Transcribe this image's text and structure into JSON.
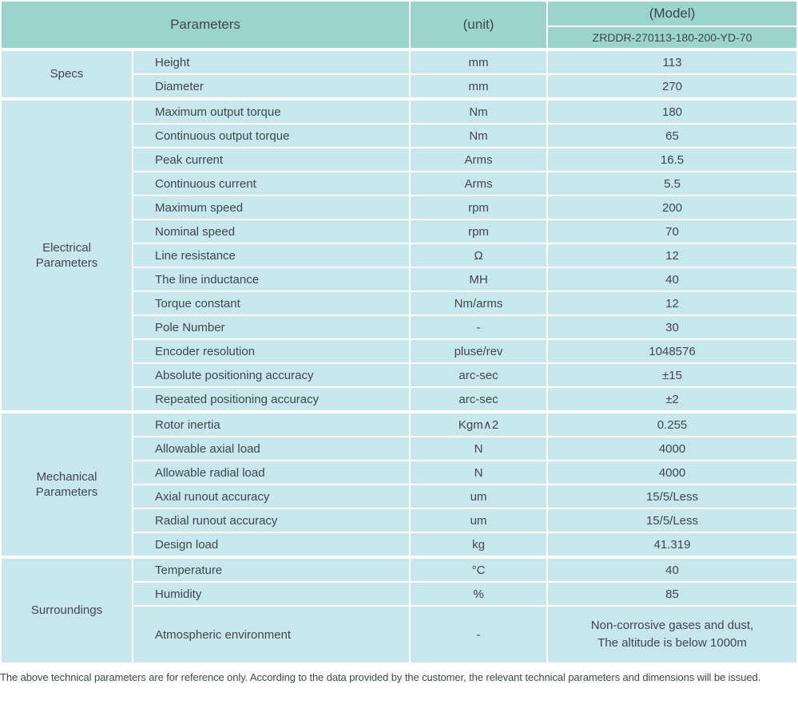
{
  "colors": {
    "header_bg": "#9bd3cd",
    "cell_bg": "#c8e7ec",
    "text": "#3e474a",
    "grid": "#ffffff",
    "page_bg": "#ffffff"
  },
  "header": {
    "parameters_label": "Parameters",
    "unit_label": "(unit)",
    "model_label": "(Model)",
    "model_value": "ZRDDR-270113-180-200-YD-70"
  },
  "sections": [
    {
      "group": "Specs",
      "rows": [
        {
          "name": "Height",
          "unit": "mm",
          "value": "113"
        },
        {
          "name": "Diameter",
          "unit": "mm",
          "value": "270"
        }
      ]
    },
    {
      "group": "Electrical Parameters",
      "rows": [
        {
          "name": "Maximum output torque",
          "unit": "Nm",
          "value": "180"
        },
        {
          "name": "Continuous output torque",
          "unit": "Nm",
          "value": "65"
        },
        {
          "name": "Peak current",
          "unit": "Arms",
          "value": "16.5"
        },
        {
          "name": "Continuous current",
          "unit": "Arms",
          "value": "5.5"
        },
        {
          "name": "Maximum speed",
          "unit": "rpm",
          "value": "200"
        },
        {
          "name": "Nominal speed",
          "unit": "rpm",
          "value": "70"
        },
        {
          "name": "Line resistance",
          "unit": "Ω",
          "value": "12"
        },
        {
          "name": "The line inductance",
          "unit": "MH",
          "value": "40"
        },
        {
          "name": "Torque constant",
          "unit": "Nm/arms",
          "value": "12"
        },
        {
          "name": "Pole Number",
          "unit": "-",
          "value": "30"
        },
        {
          "name": "Encoder resolution",
          "unit": "pluse/rev",
          "value": "1048576"
        },
        {
          "name": "Absolute positioning accuracy",
          "unit": "arc-sec",
          "value": "±15"
        },
        {
          "name": "Repeated positioning accuracy",
          "unit": "arc-sec",
          "value": "±2"
        }
      ]
    },
    {
      "group": "Mechanical Parameters",
      "rows": [
        {
          "name": "Rotor inertia",
          "unit": "Kgm∧2",
          "value": "0.255"
        },
        {
          "name": "Allowable axial load",
          "unit": "N",
          "value": "4000"
        },
        {
          "name": "Allowable radial load",
          "unit": "N",
          "value": "4000"
        },
        {
          "name": "Axial runout accuracy",
          "unit": "um",
          "value": "15/5/Less"
        },
        {
          "name": "Radial runout accuracy",
          "unit": "um",
          "value": "15/5/Less"
        },
        {
          "name": "Design load",
          "unit": "kg",
          "value": "41.319"
        }
      ]
    },
    {
      "group": "Surroundings",
      "rows": [
        {
          "name": "Temperature",
          "unit": "°C",
          "value": "40"
        },
        {
          "name": "Humidity",
          "unit": "%",
          "value": "85"
        },
        {
          "name": "Atmospheric environment",
          "unit": "-",
          "value": "Non-corrosive gases and dust,\nThe altitude is below 1000m"
        }
      ]
    }
  ],
  "footer": {
    "note": "The above technical parameters are for reference only. According to the data provided by the customer, the relevant technical parameters and dimensions will be issued."
  }
}
